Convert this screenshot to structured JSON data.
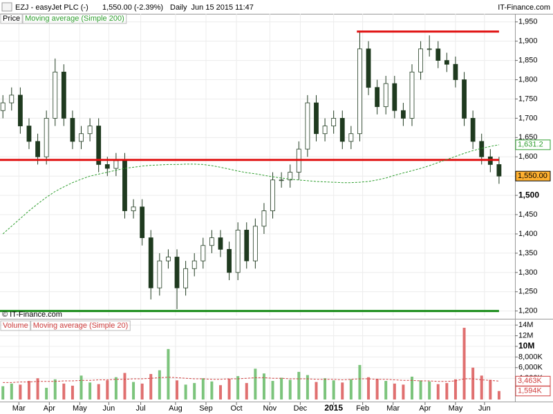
{
  "header": {
    "symbol": "EZJ - easyJet PLC (-)",
    "quote": "1,550.00 (-2.39%)",
    "info": "Daily  Jun 15 2015 11:47",
    "brand": "IT-Finance.com"
  },
  "chart_data": [
    {
      "type": "candlestick",
      "label": "Price",
      "copyright": "© IT-Finance.com",
      "grid": true,
      "up_color": "#ffffff",
      "down_color": "#1f3a1f",
      "edge_color": "#1f3a1f",
      "x": [
        2,
        8,
        14,
        20,
        26,
        32,
        38,
        44,
        50,
        56,
        62,
        68,
        74,
        80,
        86,
        92,
        98,
        104,
        110,
        116,
        122,
        128,
        134,
        140,
        146,
        152,
        158,
        164,
        170,
        176,
        182,
        188,
        194,
        200,
        206,
        212,
        218,
        224,
        230,
        236,
        242,
        248,
        254,
        260,
        266,
        272,
        278,
        284,
        290,
        296,
        302,
        308,
        314,
        320,
        326,
        332,
        338,
        344
      ],
      "open": [
        1720,
        1740,
        1760,
        1680,
        1640,
        1600,
        1700,
        1820,
        1700,
        1640,
        1660,
        1680,
        1580,
        1570,
        1590,
        1460,
        1470,
        1390,
        1260,
        1330,
        1340,
        1260,
        1310,
        1330,
        1370,
        1390,
        1360,
        1300,
        1410,
        1330,
        1420,
        1460,
        1540,
        1540,
        1560,
        1620,
        1740,
        1660,
        1680,
        1700,
        1640,
        1660,
        1880,
        1780,
        1730,
        1790,
        1720,
        1700,
        1820,
        1880,
        1880,
        1850,
        1840,
        1800,
        1700,
        1640,
        1600,
        1580
      ],
      "high": [
        1760,
        1780,
        1780,
        1700,
        1660,
        1720,
        1855,
        1840,
        1720,
        1680,
        1700,
        1700,
        1600,
        1610,
        1610,
        1490,
        1490,
        1410,
        1350,
        1360,
        1360,
        1330,
        1350,
        1390,
        1410,
        1410,
        1380,
        1430,
        1430,
        1440,
        1480,
        1560,
        1560,
        1580,
        1640,
        1760,
        1760,
        1700,
        1720,
        1720,
        1680,
        1925,
        1900,
        1800,
        1810,
        1810,
        1740,
        1840,
        1900,
        1915,
        1900,
        1870,
        1860,
        1820,
        1720,
        1660,
        1620,
        1600
      ],
      "low": [
        1700,
        1720,
        1660,
        1620,
        1580,
        1580,
        1680,
        1680,
        1620,
        1620,
        1640,
        1560,
        1550,
        1550,
        1440,
        1440,
        1370,
        1230,
        1240,
        1310,
        1205,
        1240,
        1290,
        1310,
        1350,
        1340,
        1280,
        1280,
        1310,
        1310,
        1400,
        1440,
        1520,
        1520,
        1540,
        1600,
        1640,
        1640,
        1660,
        1620,
        1620,
        1640,
        1760,
        1710,
        1710,
        1700,
        1680,
        1680,
        1800,
        1860,
        1830,
        1820,
        1780,
        1680,
        1620,
        1580,
        1560,
        1530
      ],
      "close": [
        1740,
        1760,
        1680,
        1640,
        1600,
        1700,
        1820,
        1700,
        1640,
        1660,
        1680,
        1580,
        1570,
        1590,
        1460,
        1470,
        1390,
        1260,
        1330,
        1340,
        1260,
        1310,
        1330,
        1370,
        1390,
        1360,
        1300,
        1410,
        1330,
        1420,
        1460,
        1540,
        1540,
        1560,
        1620,
        1740,
        1660,
        1680,
        1700,
        1640,
        1660,
        1880,
        1780,
        1730,
        1790,
        1720,
        1700,
        1820,
        1880,
        1880,
        1850,
        1840,
        1800,
        1700,
        1640,
        1600,
        1580,
        1550
      ],
      "series": [
        {
          "name": "Moving average (Simple 200)",
          "color": "#2e9e2e",
          "values": [
            1400,
            1420,
            1440,
            1460,
            1478,
            1495,
            1510,
            1522,
            1533,
            1542,
            1550,
            1555,
            1560,
            1565,
            1570,
            1573,
            1576,
            1578,
            1579,
            1580,
            1580,
            1581,
            1581,
            1580,
            1577,
            1573,
            1568,
            1563,
            1559,
            1556,
            1552,
            1548,
            1545,
            1542,
            1540,
            1538,
            1536,
            1535,
            1534,
            1533,
            1533,
            1534,
            1536,
            1540,
            1545,
            1552,
            1558,
            1564,
            1570,
            1577,
            1585,
            1593,
            1601,
            1609,
            1616,
            1622,
            1627,
            1631.2
          ]
        }
      ],
      "levels": [
        {
          "value": 1925,
          "from": 246,
          "to": 344,
          "color": "#e01010"
        },
        {
          "value": 1592,
          "from": 0,
          "to": 344,
          "color": "#e01010"
        },
        {
          "value": 1200,
          "from": 0,
          "to": 344,
          "color": "#118811"
        }
      ],
      "last_labels": [
        {
          "value": 1631.2,
          "label": "1,631.2",
          "color": "#2e9e2e",
          "fill": "#ffffff"
        },
        {
          "value": 1550,
          "label": "1,550.00",
          "color": "#000000",
          "fill": "#ffb030"
        }
      ],
      "xlim": [
        0,
        355
      ],
      "ylim": [
        1187,
        1971
      ],
      "yticks": [
        {
          "value": 1200,
          "label": "1,200"
        },
        {
          "value": 1250,
          "label": "1,250"
        },
        {
          "value": 1300,
          "label": "1,300"
        },
        {
          "value": 1350,
          "label": "1,350"
        },
        {
          "value": 1400,
          "label": "1,400"
        },
        {
          "value": 1450,
          "label": "1,450"
        },
        {
          "value": 1500,
          "label": "1,500",
          "major": true
        },
        {
          "value": 1550,
          "label": "1,550"
        },
        {
          "value": 1600,
          "label": "1,600"
        },
        {
          "value": 1650,
          "label": "1,650"
        },
        {
          "value": 1700,
          "label": "1,700"
        },
        {
          "value": 1750,
          "label": "1,750"
        },
        {
          "value": 1800,
          "label": "1,800"
        },
        {
          "value": 1850,
          "label": "1,850"
        },
        {
          "value": 1900,
          "label": "1,900"
        },
        {
          "value": 1950,
          "label": "1,950"
        }
      ]
    },
    {
      "type": "bar",
      "label": "Volume",
      "grid": true,
      "up_color": "#7cc47c",
      "down_color": "#e07070",
      "x": [
        2,
        8,
        14,
        20,
        26,
        32,
        38,
        44,
        50,
        56,
        62,
        68,
        74,
        80,
        86,
        92,
        98,
        104,
        110,
        116,
        122,
        128,
        134,
        140,
        146,
        152,
        158,
        164,
        170,
        176,
        182,
        188,
        194,
        200,
        206,
        212,
        218,
        224,
        230,
        236,
        242,
        248,
        254,
        260,
        266,
        272,
        278,
        284,
        290,
        296,
        302,
        308,
        314,
        320,
        326,
        332,
        338,
        344
      ],
      "values": [
        2500000,
        3000000,
        2800000,
        3500000,
        4000000,
        2200000,
        3800000,
        3000000,
        2600000,
        4500000,
        3200000,
        2900000,
        3600000,
        4200000,
        5000000,
        3300000,
        3000000,
        4800000,
        5500000,
        9500000,
        3600000,
        2800000,
        3100000,
        4000000,
        3400000,
        2700000,
        3900000,
        4400000,
        3100000,
        5800000,
        4900000,
        3500000,
        4100000,
        3700000,
        5200000,
        4600000,
        3300000,
        4000000,
        3600000,
        3200000,
        3800000,
        6500000,
        4200000,
        3900000,
        3500000,
        3000000,
        2800000,
        4300000,
        3600000,
        3400000,
        2900000,
        3100000,
        3800000,
        13500000,
        6000000,
        4500000,
        3700000,
        1594000
      ],
      "series": [
        {
          "name": "Moving average (Simple 20)",
          "color": "#d04040",
          "values": [
            3200000,
            3200000,
            3300000,
            3300000,
            3400000,
            3400000,
            3400000,
            3500000,
            3500000,
            3600000,
            3600000,
            3700000,
            3700000,
            3800000,
            3800000,
            3900000,
            3900000,
            4000000,
            4100000,
            4200000,
            4100000,
            4000000,
            3900000,
            3900000,
            3800000,
            3800000,
            3900000,
            3900000,
            4000000,
            4100000,
            4100000,
            4000000,
            4000000,
            3900000,
            3900000,
            3900000,
            3800000,
            3800000,
            3800000,
            3700000,
            3800000,
            3900000,
            3900000,
            3800000,
            3800000,
            3700000,
            3600000,
            3600000,
            3500000,
            3500000,
            3400000,
            3400000,
            3500000,
            3900000,
            3900000,
            3700000,
            3600000,
            3463000
          ]
        }
      ],
      "last_labels": [
        {
          "value": 3463000,
          "label": "3,463K",
          "color": "#d04040",
          "fill": "#ffffff"
        },
        {
          "value": 1594000,
          "label": "1,594K",
          "color": "#d04040",
          "fill": "#ffffff"
        }
      ],
      "xlim": [
        0,
        355
      ],
      "ylim": [
        0,
        14800000
      ],
      "yticks": [
        {
          "value": 4000000,
          "label": "4,000K"
        },
        {
          "value": 6000000,
          "label": "6,000K"
        },
        {
          "value": 8000000,
          "label": "8,000K"
        },
        {
          "value": 10000000,
          "label": "10M",
          "major": true
        },
        {
          "value": 12000000,
          "label": "12M"
        },
        {
          "value": 14000000,
          "label": "14M"
        }
      ],
      "xticks": [
        {
          "value": 13,
          "label": "Mar"
        },
        {
          "value": 34,
          "label": "Apr"
        },
        {
          "value": 55,
          "label": "May"
        },
        {
          "value": 75,
          "label": "Jun"
        },
        {
          "value": 97,
          "label": "Jul"
        },
        {
          "value": 121,
          "label": "Aug"
        },
        {
          "value": 142,
          "label": "Sep"
        },
        {
          "value": 163,
          "label": "Oct"
        },
        {
          "value": 186,
          "label": "Nov"
        },
        {
          "value": 207,
          "label": "Dec"
        },
        {
          "value": 230,
          "label": "2015",
          "major": true
        },
        {
          "value": 250,
          "label": "Feb"
        },
        {
          "value": 271,
          "label": "Mar"
        },
        {
          "value": 293,
          "label": "Apr"
        },
        {
          "value": 314,
          "label": "May"
        },
        {
          "value": 334,
          "label": "Jun"
        }
      ]
    }
  ]
}
